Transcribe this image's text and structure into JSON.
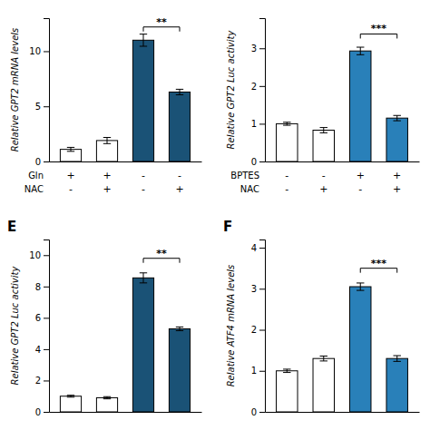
{
  "chart_data": [
    {
      "type": "bar",
      "ylabel": "Relative GPT2 mRNA levels",
      "categories": [
        null,
        null,
        null,
        null
      ],
      "values": [
        1.1,
        1.9,
        11.0,
        6.3
      ],
      "errors": [
        0.18,
        0.28,
        0.55,
        0.25
      ],
      "colors": [
        "white",
        "white",
        "#1a5276",
        "#1a5276"
      ],
      "ylim": [
        0,
        13
      ],
      "yticks": [
        0,
        5,
        10
      ],
      "row_labels": [
        {
          "label": "Gln",
          "signs": [
            "+",
            "+",
            "-",
            "-"
          ]
        },
        {
          "label": "NAC",
          "signs": [
            "-",
            "+",
            "-",
            "+"
          ]
        }
      ],
      "annotations": [
        {
          "text": "**",
          "from": 2,
          "to": 3,
          "y": 12.2
        }
      ]
    },
    {
      "type": "bar",
      "ylabel": "Relative GPT2 Luc activity",
      "categories": [
        null,
        null,
        null,
        null
      ],
      "values": [
        1.0,
        0.83,
        2.93,
        1.15
      ],
      "errors": [
        0.04,
        0.07,
        0.1,
        0.07
      ],
      "colors": [
        "white",
        "white",
        "#2980b9",
        "#2980b9"
      ],
      "ylim": [
        0,
        3.8
      ],
      "yticks": [
        0,
        1,
        2,
        3
      ],
      "row_labels": [
        {
          "label": "BPTES",
          "signs": [
            "-",
            "-",
            "+",
            "+"
          ]
        },
        {
          "label": "NAC",
          "signs": [
            "-",
            "+",
            "-",
            "+"
          ]
        }
      ],
      "annotations": [
        {
          "text": "***",
          "from": 2,
          "to": 3,
          "y": 3.38
        }
      ]
    },
    {
      "type": "bar",
      "title": "E",
      "ylabel": "Relative GPT2 Luc activity",
      "categories": [
        null,
        null,
        null,
        null
      ],
      "values": [
        1.0,
        0.9,
        8.55,
        5.3
      ],
      "errors": [
        0.06,
        0.07,
        0.32,
        0.12
      ],
      "colors": [
        "white",
        "white",
        "#1a5276",
        "#1a5276"
      ],
      "ylim": [
        0,
        11
      ],
      "yticks": [
        0,
        2,
        4,
        6,
        8,
        10
      ],
      "annotations": [
        {
          "text": "**",
          "from": 2,
          "to": 3,
          "y": 9.8
        }
      ]
    },
    {
      "type": "bar",
      "title": "F",
      "ylabel": "Relative ATF4 mRNA levels",
      "categories": [
        null,
        null,
        null,
        null
      ],
      "values": [
        1.0,
        1.3,
        3.05,
        1.3
      ],
      "errors": [
        0.04,
        0.06,
        0.09,
        0.07
      ],
      "colors": [
        "white",
        "white",
        "#2980b9",
        "#2980b9"
      ],
      "ylim": [
        0,
        4.2
      ],
      "yticks": [
        0,
        1,
        2,
        3,
        4
      ],
      "annotations": [
        {
          "text": "***",
          "from": 2,
          "to": 3,
          "y": 3.5
        }
      ]
    }
  ]
}
